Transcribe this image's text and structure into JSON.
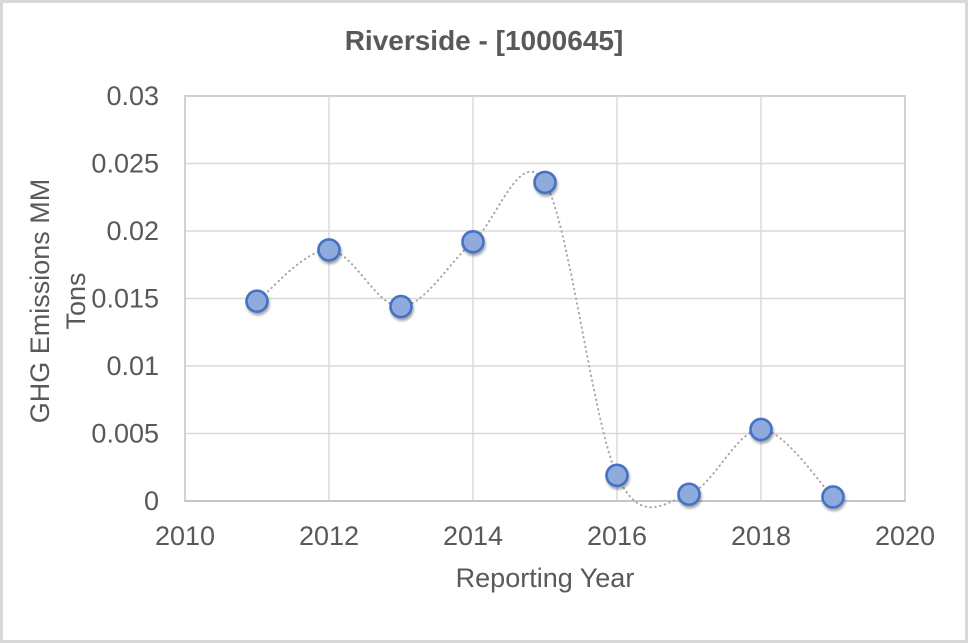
{
  "frame": {
    "background": "#FFFFFF",
    "border_color": "#D8D8D8"
  },
  "chart_data": {
    "type": "scatter",
    "title": "Riverside - [1000645]",
    "xlabel": "Reporting Year",
    "ylabel": "GHG Emissions MM Tons",
    "x": [
      2011,
      2012,
      2013,
      2014,
      2015,
      2016,
      2017,
      2018,
      2019
    ],
    "y": [
      0.0148,
      0.0186,
      0.0144,
      0.0192,
      0.0236,
      0.0019,
      0.0005,
      0.0053,
      0.0003
    ],
    "xlim": [
      2010,
      2020
    ],
    "ylim": [
      0,
      0.03
    ],
    "x_ticks": [
      2010,
      2012,
      2014,
      2016,
      2018,
      2020
    ],
    "y_ticks": [
      0,
      0.005,
      0.01,
      0.015,
      0.02,
      0.025,
      0.03
    ],
    "y_tick_labels": [
      "0",
      "0.005",
      "0.01",
      "0.015",
      "0.02",
      "0.025",
      "0.03"
    ],
    "grid": true,
    "legend": "none",
    "line": {
      "style": "dotted",
      "smooth": true,
      "color": "#A6A6A6"
    },
    "marker": {
      "shape": "circle",
      "fill": "#8FAADC",
      "stroke": "#4472C4"
    },
    "colors": {
      "grid": "#D9D9D9",
      "axis": "#C6C6C6",
      "border": "#D2D2D2",
      "text": "#595959",
      "title": "#595959"
    }
  }
}
